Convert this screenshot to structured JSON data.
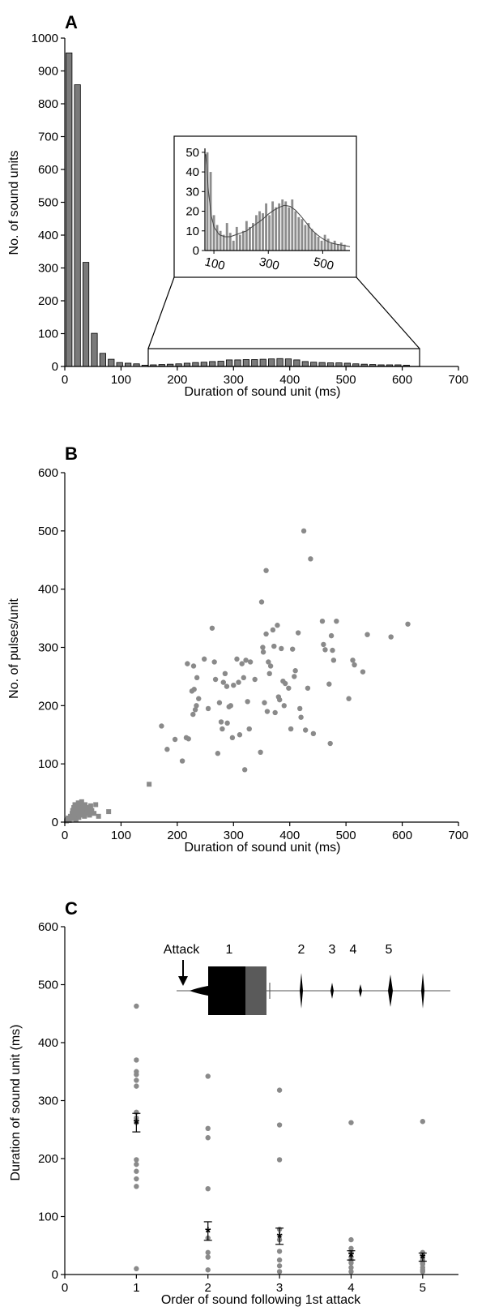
{
  "chart_data": [
    {
      "panel": "A",
      "type": "bar",
      "xlabel": "Duration of sound unit (ms)",
      "ylabel": "No. of sound units",
      "xlim": [
        0,
        700
      ],
      "ylim": [
        0,
        1000
      ],
      "xticks": [
        0,
        100,
        200,
        300,
        400,
        500,
        600,
        700
      ],
      "yticks": [
        0,
        100,
        200,
        300,
        400,
        500,
        600,
        700,
        800,
        900,
        1000
      ],
      "bin_width_ms": 15,
      "bin_start": [
        0,
        15,
        30,
        45,
        60,
        75,
        90,
        105,
        120,
        135,
        150,
        165,
        180,
        195,
        210,
        225,
        240,
        255,
        270,
        285,
        300,
        315,
        330,
        345,
        360,
        375,
        390,
        405,
        420,
        435,
        450,
        465,
        480,
        495,
        510,
        525,
        540,
        555,
        570,
        585,
        600
      ],
      "values": [
        955,
        858,
        317,
        101,
        40,
        22,
        12,
        10,
        8,
        4,
        5,
        6,
        7,
        8,
        10,
        12,
        13,
        15,
        16,
        20,
        20,
        21,
        21,
        22,
        23,
        24,
        23,
        20,
        15,
        13,
        12,
        11,
        11,
        10,
        8,
        7,
        6,
        5,
        5,
        5,
        4
      ],
      "inset": {
        "type": "bar",
        "xticks": [
          100,
          300,
          500
        ],
        "yticks": [
          0,
          10,
          20,
          30,
          40,
          50
        ],
        "xlim": [
          70,
          600
        ],
        "ylim": [
          0,
          52
        ],
        "bin_width_ms": 12,
        "bin_start": [
          70,
          82,
          94,
          106,
          118,
          130,
          142,
          154,
          166,
          178,
          190,
          202,
          214,
          226,
          238,
          250,
          262,
          274,
          286,
          298,
          310,
          322,
          334,
          346,
          358,
          370,
          382,
          394,
          406,
          418,
          430,
          442,
          454,
          466,
          478,
          490,
          502,
          514,
          526,
          538,
          550,
          562,
          574
        ],
        "values": [
          50,
          40,
          18,
          13,
          10,
          8,
          14,
          9,
          5,
          12,
          8,
          10,
          15,
          12,
          14,
          18,
          20,
          19,
          24,
          18,
          25,
          22,
          24,
          26,
          25,
          22,
          26,
          20,
          17,
          16,
          13,
          14,
          11,
          9,
          7,
          5,
          8,
          6,
          4,
          5,
          3,
          4,
          3
        ],
        "fit_curve_x": [
          70,
          80,
          90,
          100,
          120,
          140,
          160,
          180,
          200,
          220,
          240,
          260,
          280,
          300,
          320,
          340,
          360,
          380,
          400,
          420,
          440,
          460,
          480,
          500,
          520,
          540,
          560,
          580,
          600
        ],
        "fit_curve_y": [
          49,
          30,
          18,
          12,
          8,
          7,
          7,
          8,
          9,
          10,
          12,
          14,
          16,
          18.5,
          20.5,
          22,
          23,
          22.5,
          20.5,
          17.5,
          14,
          10.5,
          8,
          6,
          4.5,
          3.5,
          3,
          2.5,
          2
        ]
      }
    },
    {
      "panel": "B",
      "type": "scatter",
      "xlabel": "Duration of sound unit (ms)",
      "ylabel": "No. of pulses/unit",
      "xlim": [
        0,
        700
      ],
      "ylim": [
        0,
        600
      ],
      "xticks": [
        0,
        100,
        200,
        300,
        400,
        500,
        600,
        700
      ],
      "yticks": [
        0,
        100,
        200,
        300,
        400,
        500,
        600
      ],
      "series": [
        {
          "marker": "square",
          "color": "#8a8a8a",
          "points": [
            [
              3,
              2
            ],
            [
              5,
              4
            ],
            [
              6,
              7
            ],
            [
              8,
              3
            ],
            [
              10,
              10
            ],
            [
              12,
              6
            ],
            [
              13,
              15
            ],
            [
              14,
              20
            ],
            [
              15,
              9
            ],
            [
              16,
              25
            ],
            [
              17,
              12
            ],
            [
              18,
              30
            ],
            [
              19,
              18
            ],
            [
              20,
              5
            ],
            [
              21,
              22
            ],
            [
              22,
              28
            ],
            [
              23,
              14
            ],
            [
              24,
              33
            ],
            [
              25,
              8
            ],
            [
              26,
              25
            ],
            [
              27,
              18
            ],
            [
              28,
              30
            ],
            [
              29,
              12
            ],
            [
              30,
              35
            ],
            [
              31,
              24
            ],
            [
              32,
              16
            ],
            [
              33,
              28
            ],
            [
              34,
              20
            ],
            [
              35,
              10
            ],
            [
              36,
              30
            ],
            [
              37,
              15
            ],
            [
              38,
              25
            ],
            [
              40,
              22
            ],
            [
              42,
              18
            ],
            [
              44,
              12
            ],
            [
              46,
              28
            ],
            [
              48,
              20
            ],
            [
              52,
              15
            ],
            [
              55,
              30
            ],
            [
              60,
              10
            ],
            [
              78,
              18
            ],
            [
              150,
              65
            ]
          ]
        },
        {
          "marker": "circle",
          "color": "#8a8a8a",
          "points": [
            [
              172,
              165
            ],
            [
              182,
              125
            ],
            [
              196,
              142
            ],
            [
              209,
              105
            ],
            [
              216,
              145
            ],
            [
              218,
              272
            ],
            [
              220,
              143
            ],
            [
              226,
              225
            ],
            [
              228,
              185
            ],
            [
              229,
              268
            ],
            [
              230,
              228
            ],
            [
              232,
              193
            ],
            [
              234,
              200
            ],
            [
              235,
              248
            ],
            [
              238,
              212
            ],
            [
              248,
              280
            ],
            [
              255,
              195
            ],
            [
              262,
              333
            ],
            [
              266,
              275
            ],
            [
              268,
              245
            ],
            [
              272,
              118
            ],
            [
              275,
              205
            ],
            [
              278,
              172
            ],
            [
              280,
              160
            ],
            [
              282,
              240
            ],
            [
              285,
              255
            ],
            [
              288,
              233
            ],
            [
              289,
              170
            ],
            [
              292,
              198
            ],
            [
              295,
              200
            ],
            [
              298,
              145
            ],
            [
              300,
              235
            ],
            [
              306,
              280
            ],
            [
              309,
              240
            ],
            [
              311,
              150
            ],
            [
              315,
              272
            ],
            [
              318,
              248
            ],
            [
              320,
              90
            ],
            [
              322,
              278
            ],
            [
              325,
              207
            ],
            [
              328,
              160
            ],
            [
              330,
              275
            ],
            [
              338,
              245
            ],
            [
              348,
              120
            ],
            [
              350,
              378
            ],
            [
              352,
              300
            ],
            [
              353,
              292
            ],
            [
              355,
              205
            ],
            [
              358,
              323
            ],
            [
              358,
              432
            ],
            [
              360,
              190
            ],
            [
              362,
              275
            ],
            [
              364,
              255
            ],
            [
              366,
              268
            ],
            [
              370,
              330
            ],
            [
              372,
              302
            ],
            [
              374,
              188
            ],
            [
              378,
              338
            ],
            [
              380,
              215
            ],
            [
              382,
              210
            ],
            [
              385,
              298
            ],
            [
              388,
              242
            ],
            [
              390,
              200
            ],
            [
              392,
              238
            ],
            [
              398,
              230
            ],
            [
              402,
              160
            ],
            [
              405,
              297
            ],
            [
              408,
              250
            ],
            [
              410,
              260
            ],
            [
              415,
              325
            ],
            [
              418,
              195
            ],
            [
              420,
              180
            ],
            [
              425,
              500
            ],
            [
              428,
              158
            ],
            [
              432,
              230
            ],
            [
              437,
              452
            ],
            [
              442,
              152
            ],
            [
              458,
              345
            ],
            [
              460,
              305
            ],
            [
              463,
              296
            ],
            [
              470,
              237
            ],
            [
              472,
              135
            ],
            [
              474,
              320
            ],
            [
              476,
              295
            ],
            [
              478,
              278
            ],
            [
              483,
              345
            ],
            [
              505,
              212
            ],
            [
              512,
              278
            ],
            [
              515,
              270
            ],
            [
              530,
              258
            ],
            [
              538,
              322
            ],
            [
              580,
              318
            ],
            [
              610,
              340
            ]
          ]
        }
      ]
    },
    {
      "panel": "C",
      "type": "scatter",
      "xlabel": "Order of sound following 1st attack",
      "ylabel": "Duration of sound unit (ms)",
      "xlim": [
        0,
        5.5
      ],
      "ylim": [
        0,
        600
      ],
      "xticks": [
        0,
        1,
        2,
        3,
        4,
        5
      ],
      "yticks": [
        0,
        100,
        200,
        300,
        400,
        500,
        600
      ],
      "points": {
        "1": [
          463,
          370,
          350,
          345,
          335,
          325,
          280,
          270,
          262,
          198,
          190,
          178,
          165,
          152,
          10
        ],
        "2": [
          342,
          252,
          236,
          148,
          63,
          38,
          30,
          8
        ],
        "3": [
          318,
          258,
          198,
          78,
          60,
          40,
          25,
          15,
          5
        ],
        "4": [
          262,
          60,
          45,
          38,
          30,
          25,
          20,
          12,
          5
        ],
        "5": [
          264,
          38,
          30,
          25,
          20,
          18,
          12,
          8,
          5
        ]
      },
      "means": [
        262,
        75,
        66,
        33,
        30
      ],
      "errors": [
        16,
        16,
        14,
        8,
        7
      ],
      "oscillogram": {
        "attack_label": "Attack",
        "unit_labels": [
          "1",
          "2",
          "3",
          "4",
          "5"
        ]
      }
    }
  ],
  "panels": {
    "a": {
      "label": "A"
    },
    "b": {
      "label": "B"
    },
    "c": {
      "label": "C"
    }
  }
}
